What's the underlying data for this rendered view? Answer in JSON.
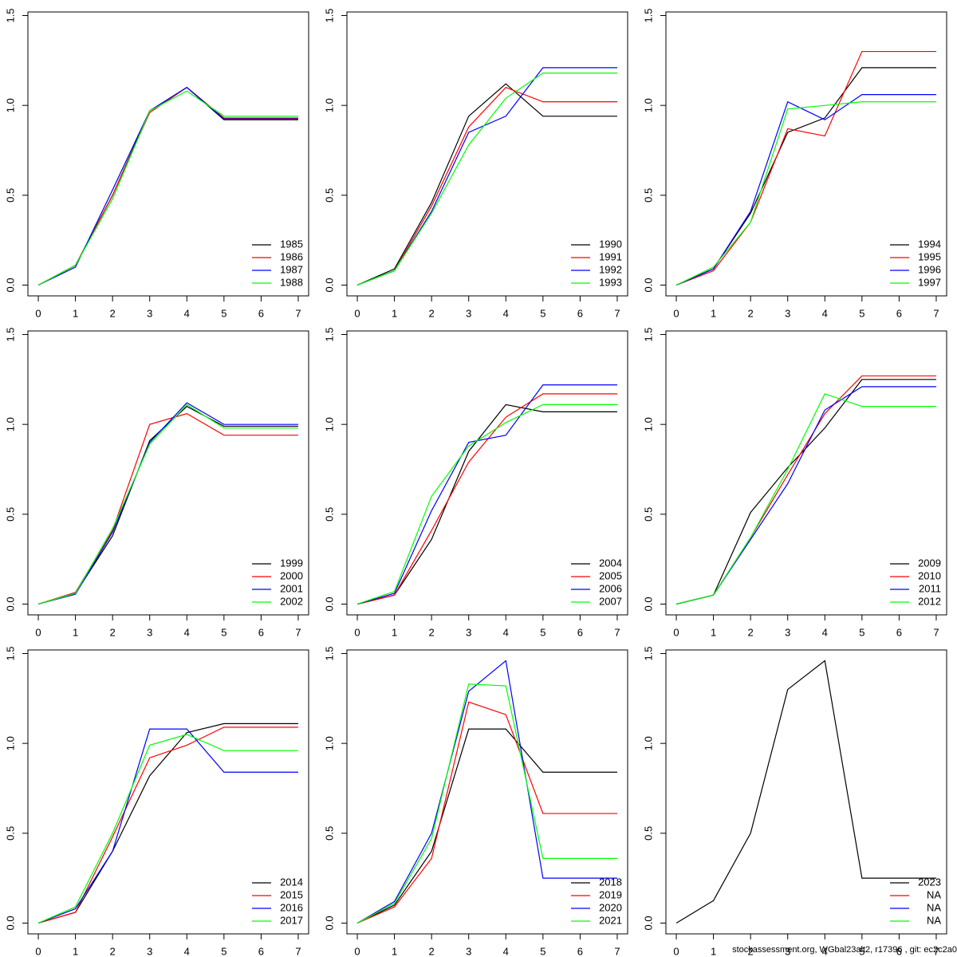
{
  "chart_data": [
    {
      "type": "line",
      "x": [
        0,
        1,
        2,
        3,
        4,
        5,
        6,
        7
      ],
      "xlim": [
        -0.28,
        7.28
      ],
      "ylim": [
        -0.06,
        1.52
      ],
      "xticks": [
        0,
        1,
        2,
        3,
        4,
        5,
        6,
        7
      ],
      "yticks": [
        {
          "value": 0,
          "label": "0.0"
        },
        0.5,
        {
          "value": 1,
          "label": "1.0"
        },
        1.5
      ],
      "legend": "bottomright",
      "series": [
        {
          "name": "1985",
          "color": "#000000",
          "values": [
            0,
            0.11,
            0.5,
            0.97,
            1.1,
            0.92,
            0.92,
            0.92
          ]
        },
        {
          "name": "1986",
          "color": "#ff0000",
          "values": [
            0,
            0.11,
            0.5,
            0.96,
            1.1,
            0.93,
            0.93,
            0.93
          ]
        },
        {
          "name": "1987",
          "color": "#0000ff",
          "values": [
            0,
            0.1,
            0.53,
            0.97,
            1.1,
            0.925,
            0.925,
            0.925
          ]
        },
        {
          "name": "1988",
          "color": "#00ff00",
          "values": [
            0,
            0.11,
            0.48,
            0.97,
            1.08,
            0.94,
            0.94,
            0.94
          ]
        }
      ]
    },
    {
      "type": "line",
      "x": [
        0,
        1,
        2,
        3,
        4,
        5,
        6,
        7
      ],
      "xlim": [
        -0.28,
        7.28
      ],
      "ylim": [
        -0.06,
        1.52
      ],
      "xticks": [
        0,
        1,
        2,
        3,
        4,
        5,
        6,
        7
      ],
      "yticks": [
        {
          "value": 0,
          "label": "0.0"
        },
        0.5,
        {
          "value": 1,
          "label": "1.0"
        },
        1.5
      ],
      "legend": "bottomright",
      "series": [
        {
          "name": "1990",
          "color": "#000000",
          "values": [
            0,
            0.09,
            0.46,
            0.94,
            1.12,
            0.94,
            0.94,
            0.94
          ]
        },
        {
          "name": "1991",
          "color": "#ff0000",
          "values": [
            0,
            0.08,
            0.44,
            0.88,
            1.1,
            1.02,
            1.02,
            1.02
          ]
        },
        {
          "name": "1992",
          "color": "#0000ff",
          "values": [
            0,
            0.08,
            0.41,
            0.85,
            0.94,
            1.21,
            1.21,
            1.21
          ]
        },
        {
          "name": "1993",
          "color": "#00ff00",
          "values": [
            0,
            0.08,
            0.4,
            0.78,
            1.04,
            1.18,
            1.18,
            1.18
          ]
        }
      ]
    },
    {
      "type": "line",
      "x": [
        0,
        1,
        2,
        3,
        4,
        5,
        6,
        7
      ],
      "xlim": [
        -0.28,
        7.28
      ],
      "ylim": [
        -0.06,
        1.52
      ],
      "xticks": [
        0,
        1,
        2,
        3,
        4,
        5,
        6,
        7
      ],
      "yticks": [
        {
          "value": 0,
          "label": "0.0"
        },
        0.5,
        {
          "value": 1,
          "label": "1.0"
        },
        1.5
      ],
      "legend": "bottomright",
      "series": [
        {
          "name": "1994",
          "color": "#000000",
          "values": [
            0,
            0.09,
            0.4,
            0.85,
            0.93,
            1.21,
            1.21,
            1.21
          ]
        },
        {
          "name": "1995",
          "color": "#ff0000",
          "values": [
            0,
            0.08,
            0.35,
            0.87,
            0.83,
            1.3,
            1.3,
            1.3
          ]
        },
        {
          "name": "1996",
          "color": "#0000ff",
          "values": [
            0,
            0.09,
            0.41,
            1.02,
            0.92,
            1.06,
            1.06,
            1.06
          ]
        },
        {
          "name": "1997",
          "color": "#00ff00",
          "values": [
            0,
            0.1,
            0.35,
            0.98,
            1.0,
            1.02,
            1.02,
            1.02
          ]
        }
      ]
    },
    {
      "type": "line",
      "x": [
        0,
        1,
        2,
        3,
        4,
        5,
        6,
        7
      ],
      "xlim": [
        -0.28,
        7.28
      ],
      "ylim": [
        -0.06,
        1.52
      ],
      "xticks": [
        0,
        1,
        2,
        3,
        4,
        5,
        6,
        7
      ],
      "yticks": [
        {
          "value": 0,
          "label": "0.0"
        },
        0.5,
        {
          "value": 1,
          "label": "1.0"
        },
        1.5
      ],
      "legend": "bottomright",
      "series": [
        {
          "name": "1999",
          "color": "#000000",
          "values": [
            0,
            0.06,
            0.38,
            0.91,
            1.1,
            0.99,
            0.99,
            0.99
          ]
        },
        {
          "name": "2000",
          "color": "#ff0000",
          "values": [
            0,
            0.065,
            0.41,
            1.0,
            1.06,
            0.94,
            0.94,
            0.94
          ]
        },
        {
          "name": "2001",
          "color": "#0000ff",
          "values": [
            0,
            0.055,
            0.4,
            0.9,
            1.12,
            1.0,
            1.0,
            1.0
          ]
        },
        {
          "name": "2002",
          "color": "#00ff00",
          "values": [
            0,
            0.06,
            0.42,
            0.89,
            1.11,
            0.98,
            0.98,
            0.98
          ]
        }
      ]
    },
    {
      "type": "line",
      "x": [
        0,
        1,
        2,
        3,
        4,
        5,
        6,
        7
      ],
      "xlim": [
        -0.28,
        7.28
      ],
      "ylim": [
        -0.06,
        1.52
      ],
      "xticks": [
        0,
        1,
        2,
        3,
        4,
        5,
        6,
        7
      ],
      "yticks": [
        {
          "value": 0,
          "label": "0.0"
        },
        0.5,
        {
          "value": 1,
          "label": "1.0"
        },
        1.5
      ],
      "legend": "bottomright",
      "series": [
        {
          "name": "2004",
          "color": "#000000",
          "values": [
            0,
            0.05,
            0.36,
            0.85,
            1.11,
            1.07,
            1.07,
            1.07
          ]
        },
        {
          "name": "2005",
          "color": "#ff0000",
          "values": [
            0,
            0.05,
            0.41,
            0.79,
            1.04,
            1.17,
            1.17,
            1.17
          ]
        },
        {
          "name": "2006",
          "color": "#0000ff",
          "values": [
            0,
            0.06,
            0.52,
            0.9,
            0.94,
            1.22,
            1.22,
            1.22
          ]
        },
        {
          "name": "2007",
          "color": "#00ff00",
          "values": [
            0,
            0.07,
            0.6,
            0.88,
            1.01,
            1.11,
            1.11,
            1.11
          ]
        }
      ]
    },
    {
      "type": "line",
      "x": [
        0,
        1,
        2,
        3,
        4,
        5,
        6,
        7
      ],
      "xlim": [
        -0.28,
        7.28
      ],
      "ylim": [
        -0.06,
        1.52
      ],
      "xticks": [
        0,
        1,
        2,
        3,
        4,
        5,
        6,
        7
      ],
      "yticks": [
        {
          "value": 0,
          "label": "0.0"
        },
        0.5,
        {
          "value": 1,
          "label": "1.0"
        },
        1.5
      ],
      "legend": "bottomright",
      "series": [
        {
          "name": "2009",
          "color": "#000000",
          "values": [
            0,
            0.05,
            0.51,
            0.76,
            0.98,
            1.25,
            1.25,
            1.25
          ]
        },
        {
          "name": "2010",
          "color": "#ff0000",
          "values": [
            0,
            0.05,
            0.37,
            0.72,
            1.06,
            1.27,
            1.27,
            1.27
          ]
        },
        {
          "name": "2011",
          "color": "#0000ff",
          "values": [
            0,
            0.05,
            0.36,
            0.67,
            1.08,
            1.21,
            1.21,
            1.21
          ]
        },
        {
          "name": "2012",
          "color": "#00ff00",
          "values": [
            0,
            0.05,
            0.37,
            0.75,
            1.17,
            1.1,
            1.1,
            1.1
          ]
        }
      ]
    },
    {
      "type": "line",
      "x": [
        0,
        1,
        2,
        3,
        4,
        5,
        6,
        7
      ],
      "xlim": [
        -0.28,
        7.28
      ],
      "ylim": [
        -0.06,
        1.52
      ],
      "xticks": [
        0,
        1,
        2,
        3,
        4,
        5,
        6,
        7
      ],
      "yticks": [
        {
          "value": 0,
          "label": "0.0"
        },
        0.5,
        {
          "value": 1,
          "label": "1.0"
        },
        1.5
      ],
      "legend": "bottomright",
      "series": [
        {
          "name": "2014",
          "color": "#000000",
          "values": [
            0,
            0.06,
            0.4,
            0.82,
            1.06,
            1.11,
            1.11,
            1.11
          ]
        },
        {
          "name": "2015",
          "color": "#ff0000",
          "values": [
            0,
            0.06,
            0.48,
            0.92,
            0.99,
            1.09,
            1.09,
            1.09
          ]
        },
        {
          "name": "2016",
          "color": "#0000ff",
          "values": [
            0,
            0.08,
            0.4,
            1.08,
            1.08,
            0.84,
            0.84,
            0.84
          ]
        },
        {
          "name": "2017",
          "color": "#00ff00",
          "values": [
            0,
            0.09,
            0.5,
            0.99,
            1.05,
            0.96,
            0.96,
            0.96
          ]
        }
      ]
    },
    {
      "type": "line",
      "x": [
        0,
        1,
        2,
        3,
        4,
        5,
        6,
        7
      ],
      "xlim": [
        -0.28,
        7.28
      ],
      "ylim": [
        -0.06,
        1.52
      ],
      "xticks": [
        0,
        1,
        2,
        3,
        4,
        5,
        6,
        7
      ],
      "yticks": [
        {
          "value": 0,
          "label": "0.0"
        },
        0.5,
        {
          "value": 1,
          "label": "1.0"
        },
        1.5
      ],
      "legend": "bottomright",
      "series": [
        {
          "name": "2018",
          "color": "#000000",
          "values": [
            0,
            0.1,
            0.4,
            1.08,
            1.08,
            0.84,
            0.84,
            0.84
          ]
        },
        {
          "name": "2019",
          "color": "#ff0000",
          "values": [
            0,
            0.09,
            0.36,
            1.23,
            1.16,
            0.61,
            0.61,
            0.61
          ]
        },
        {
          "name": "2020",
          "color": "#0000ff",
          "values": [
            0,
            0.12,
            0.5,
            1.29,
            1.46,
            0.25,
            0.25,
            0.25
          ]
        },
        {
          "name": "2021",
          "color": "#00ff00",
          "values": [
            0,
            0.11,
            0.47,
            1.33,
            1.32,
            0.36,
            0.36,
            0.36
          ]
        }
      ]
    },
    {
      "type": "line",
      "x": [
        0,
        1,
        2,
        3,
        4,
        5,
        6,
        7
      ],
      "xlim": [
        -0.28,
        7.28
      ],
      "ylim": [
        -0.06,
        1.52
      ],
      "xticks": [
        0,
        1,
        2,
        3,
        4,
        5,
        6,
        7
      ],
      "yticks": [
        {
          "value": 0,
          "label": "0.0"
        },
        0.5,
        {
          "value": 1,
          "label": "1.0"
        },
        1.5
      ],
      "legend": "bottomright",
      "series": [
        {
          "name": "2023",
          "color": "#000000",
          "values": [
            0,
            0.125,
            0.5,
            1.3,
            1.46,
            0.25,
            0.25,
            0.25
          ]
        },
        {
          "name": "NA",
          "color": "#ff0000",
          "values": [
            null,
            null,
            null,
            null,
            null,
            null,
            null,
            null
          ]
        },
        {
          "name": "NA",
          "color": "#0000ff",
          "values": [
            null,
            null,
            null,
            null,
            null,
            null,
            null,
            null
          ]
        },
        {
          "name": "NA",
          "color": "#00ff00",
          "values": [
            null,
            null,
            null,
            null,
            null,
            null,
            null,
            null
          ]
        }
      ]
    }
  ],
  "footer": "stockassessment.org, WGbal23alt2, r17396 , git: ec2c2a0"
}
